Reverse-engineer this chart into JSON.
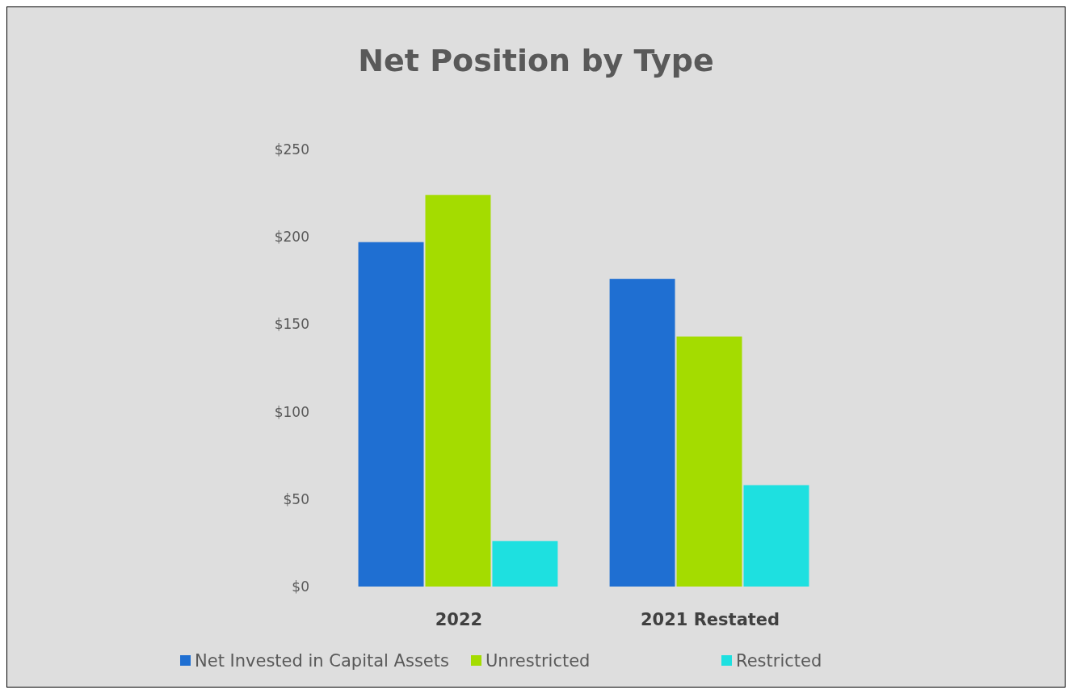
{
  "chart_data": {
    "type": "bar",
    "title": "Net Position by Type",
    "categories": [
      "2022",
      "2021 Restated"
    ],
    "series": [
      {
        "name": "Net Invested in Capital Assets",
        "color": "#1f6fd2",
        "values": [
          197,
          176
        ]
      },
      {
        "name": "Unrestricted",
        "color": "#a4dc00",
        "values": [
          224,
          143
        ]
      },
      {
        "name": "Restricted",
        "color": "#1ee0e0",
        "values": [
          26,
          58
        ]
      }
    ],
    "ylim": [
      0,
      250
    ],
    "yticks": [
      {
        "value": 0,
        "label": "$0"
      },
      {
        "value": 50,
        "label": "$50"
      },
      {
        "value": 100,
        "label": "$100"
      },
      {
        "value": 150,
        "label": "$150"
      },
      {
        "value": 200,
        "label": "$200"
      },
      {
        "value": 250,
        "label": "$250"
      }
    ],
    "legend": "bottom"
  }
}
